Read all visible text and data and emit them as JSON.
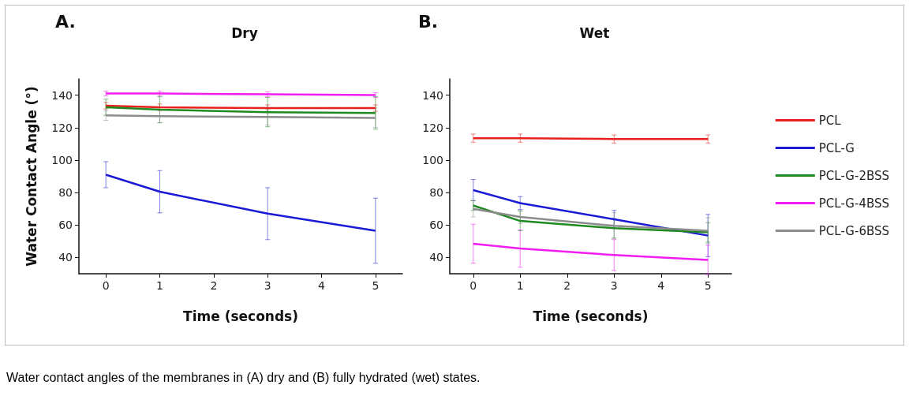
{
  "chart_data": [
    {
      "type": "line",
      "title": "Dry",
      "annotations": [
        "A.",
        "Water contact angles of the membranes in (A) dry and (B) fully hydrated (wet) states."
      ],
      "xlabel": "Time (seconds)",
      "ylabel": "Water Contact Angle (°)",
      "x": [
        0,
        1,
        3,
        5
      ],
      "xlim": [
        -0.5,
        5.5
      ],
      "xticks": [
        0,
        1,
        2,
        3,
        4,
        5
      ],
      "ylim": [
        30,
        150
      ],
      "yticks": [
        40,
        60,
        80,
        100,
        120,
        140
      ],
      "grid": false,
      "legend": false,
      "marker": "none",
      "line_style": "solid",
      "series": [
        {
          "color": "#e8201c",
          "values": [
            133.5,
            132.5,
            132,
            132
          ],
          "errors": [
            2,
            2,
            2,
            2
          ]
        },
        {
          "color": "#1a1ad6",
          "values": [
            91,
            80.5,
            67,
            56.5
          ],
          "errors": [
            8,
            13,
            16,
            20
          ]
        },
        {
          "color": "#1f8a1f",
          "values": [
            132.5,
            131,
            129.5,
            129
          ],
          "errors": [
            5,
            8,
            9,
            10
          ]
        },
        {
          "color": "#f01cf0",
          "values": [
            141,
            141,
            140.5,
            140
          ],
          "errors": [
            1.5,
            1.5,
            1.5,
            1.5
          ]
        },
        {
          "color": "#8c8c8c",
          "values": [
            127.5,
            127,
            126.5,
            126
          ],
          "errors": [
            3,
            4,
            5,
            6
          ]
        }
      ]
    },
    {
      "type": "line",
      "title": "Wet",
      "annotations": [
        "B."
      ],
      "xlabel": "Time (seconds)",
      "x": [
        0,
        1,
        3,
        5
      ],
      "xlim": [
        -0.5,
        5.5
      ],
      "xticks": [
        0,
        1,
        2,
        3,
        4,
        5
      ],
      "ylim": [
        30,
        150
      ],
      "yticks": [
        40,
        60,
        80,
        100,
        120,
        140
      ],
      "grid": false,
      "legend": "right",
      "marker": "none",
      "line_style": "solid",
      "series": [
        {
          "name": "PCL",
          "color": "#e8201c",
          "values": [
            113.5,
            113.5,
            113,
            113
          ],
          "errors": [
            2.5,
            2.5,
            2.5,
            2.5
          ]
        },
        {
          "name": "PCL-G",
          "color": "#1a1ad6",
          "values": [
            81.5,
            73.5,
            63.5,
            53.5
          ],
          "errors": [
            6.5,
            4,
            5.5,
            13
          ]
        },
        {
          "name": "PCL-G-2BSS",
          "color": "#1f8a1f",
          "values": [
            72,
            62.5,
            58,
            55.5
          ],
          "errors": [
            3,
            6,
            6,
            6
          ]
        },
        {
          "name": "PCL-G-4BSS",
          "color": "#f01cf0",
          "values": [
            48.5,
            45.5,
            41.5,
            38.5
          ],
          "errors": [
            12,
            11.5,
            9.5,
            9
          ]
        },
        {
          "name": "PCL-G-6BSS",
          "color": "#8c8c8c",
          "values": [
            70,
            65,
            59.5,
            56.5
          ],
          "errors": [
            5,
            4,
            8,
            8
          ]
        }
      ]
    }
  ]
}
